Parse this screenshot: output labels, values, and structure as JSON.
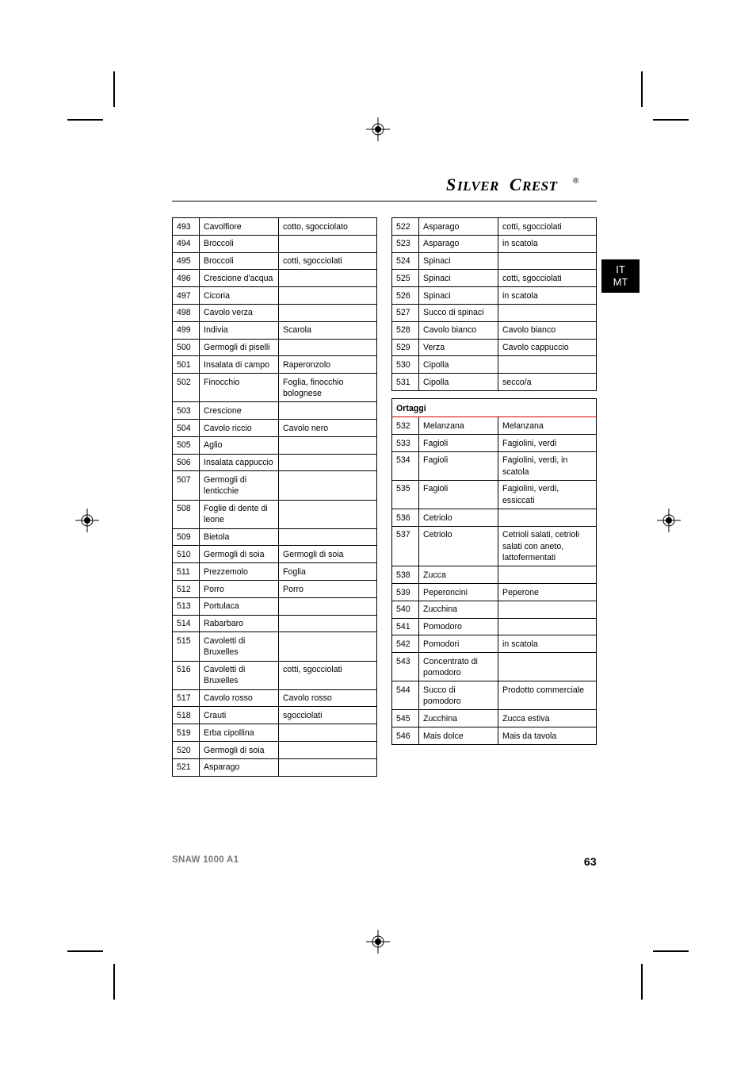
{
  "brand": {
    "name": "SILVERCREST",
    "mark": "®"
  },
  "lang_tab": {
    "line1": "IT",
    "line2": "MT"
  },
  "footer": {
    "model": "SNAW 1000 A1",
    "page": "63"
  },
  "tables": {
    "left": {
      "rows": [
        {
          "n": "493",
          "a": "Cavolfiore",
          "b": "cotto, sgocciolato"
        },
        {
          "n": "494",
          "a": "Broccoli",
          "b": ""
        },
        {
          "n": "495",
          "a": "Broccoli",
          "b": "cotti, sgocciolati"
        },
        {
          "n": "496",
          "a": "Crescione d'acqua",
          "b": ""
        },
        {
          "n": "497",
          "a": "Cicoria",
          "b": ""
        },
        {
          "n": "498",
          "a": "Cavolo verza",
          "b": ""
        },
        {
          "n": "499",
          "a": "Indivia",
          "b": "Scarola"
        },
        {
          "n": "500",
          "a": "Germogli di piselli",
          "b": ""
        },
        {
          "n": "501",
          "a": "Insalata di campo",
          "b": "Raperonzolo"
        },
        {
          "n": "502",
          "a": "Finocchio",
          "b": "Foglia, finocchio bolognese"
        },
        {
          "n": "503",
          "a": "Crescione",
          "b": ""
        },
        {
          "n": "504",
          "a": "Cavolo riccio",
          "b": "Cavolo nero"
        },
        {
          "n": "505",
          "a": "Aglio",
          "b": ""
        },
        {
          "n": "506",
          "a": "Insalata cappuccio",
          "b": ""
        },
        {
          "n": "507",
          "a": "Germogli di lenticchie",
          "b": ""
        },
        {
          "n": "508",
          "a": "Foglie di dente di leone",
          "b": ""
        },
        {
          "n": "509",
          "a": "Bietola",
          "b": ""
        },
        {
          "n": "510",
          "a": "Germogli di soia",
          "b": "Germogli di soia"
        },
        {
          "n": "511",
          "a": "Prezzemolo",
          "b": "Foglia"
        },
        {
          "n": "512",
          "a": "Porro",
          "b": "Porro"
        },
        {
          "n": "513",
          "a": "Portulaca",
          "b": ""
        },
        {
          "n": "514",
          "a": "Rabarbaro",
          "b": ""
        },
        {
          "n": "515",
          "a": "Cavoletti di Bruxelles",
          "b": ""
        },
        {
          "n": "516",
          "a": "Cavoletti di Bruxelles",
          "b": "cotti, sgocciolati"
        },
        {
          "n": "517",
          "a": "Cavolo rosso",
          "b": "Cavolo rosso"
        },
        {
          "n": "518",
          "a": "Crauti",
          "b": "sgocciolati"
        },
        {
          "n": "519",
          "a": "Erba cipollina",
          "b": ""
        },
        {
          "n": "520",
          "a": "Germogli di soia",
          "b": ""
        },
        {
          "n": "521",
          "a": "Asparago",
          "b": ""
        }
      ]
    },
    "right_top": {
      "rows": [
        {
          "n": "522",
          "a": "Asparago",
          "b": "cotti, sgocciolati"
        },
        {
          "n": "523",
          "a": "Asparago",
          "b": "in scatola"
        },
        {
          "n": "524",
          "a": "Spinaci",
          "b": ""
        },
        {
          "n": "525",
          "a": "Spinaci",
          "b": "cotti, sgocciolati"
        },
        {
          "n": "526",
          "a": "Spinaci",
          "b": "in scatola"
        },
        {
          "n": "527",
          "a": "Succo di spinaci",
          "b": ""
        },
        {
          "n": "528",
          "a": "Cavolo bianco",
          "b": "Cavolo bianco"
        },
        {
          "n": "529",
          "a": "Verza",
          "b": "Cavolo cappuccio"
        },
        {
          "n": "530",
          "a": "Cipolla",
          "b": ""
        },
        {
          "n": "531",
          "a": "Cipolla",
          "b": "secco/a"
        }
      ]
    },
    "right_section": {
      "title": "Ortaggi"
    },
    "right_bottom": {
      "rows": [
        {
          "n": "532",
          "a": "Melanzana",
          "b": "Melanzana"
        },
        {
          "n": "533",
          "a": "Fagioli",
          "b": "Fagiolini, verdi"
        },
        {
          "n": "534",
          "a": "Fagioli",
          "b": "Fagiolini, verdi, in scatola"
        },
        {
          "n": "535",
          "a": "Fagioli",
          "b": "Fagiolini, verdi, essiccati"
        },
        {
          "n": "536",
          "a": "Cetriolo",
          "b": ""
        },
        {
          "n": "537",
          "a": "Cetriolo",
          "b": "Cetrioli salati, cetrioli salati con aneto, lattofermentati"
        },
        {
          "n": "538",
          "a": "Zucca",
          "b": ""
        },
        {
          "n": "539",
          "a": "Peperoncini",
          "b": "Peperone"
        },
        {
          "n": "540",
          "a": "Zucchina",
          "b": ""
        },
        {
          "n": "541",
          "a": "Pomodoro",
          "b": ""
        },
        {
          "n": "542",
          "a": "Pomodori",
          "b": "in scatola"
        },
        {
          "n": "543",
          "a": "Concentrato di pomodoro",
          "b": ""
        },
        {
          "n": "544",
          "a": "Succo di pomodoro",
          "b": "Prodotto commerciale"
        },
        {
          "n": "545",
          "a": "Zucchina",
          "b": "Zucca estiva"
        },
        {
          "n": "546",
          "a": "Mais dolce",
          "b": "Mais da tavola"
        }
      ]
    }
  }
}
